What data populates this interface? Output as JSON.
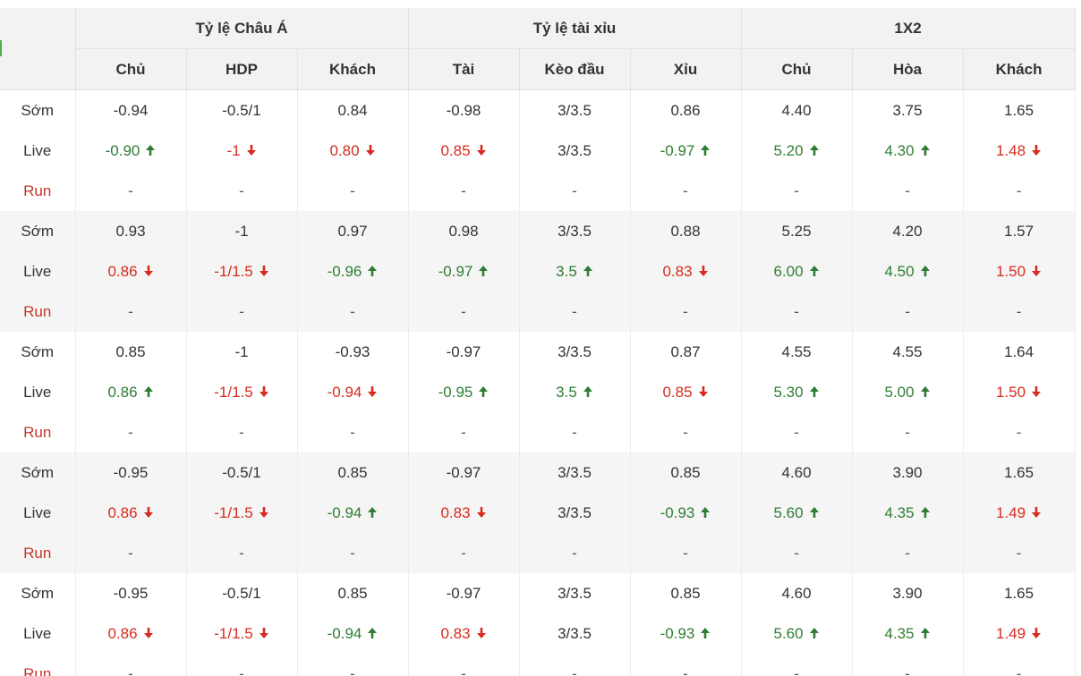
{
  "header": {
    "groups": [
      "Tỷ lệ Châu Á",
      "Tỷ lệ tài xỉu",
      "1X2"
    ],
    "columns": [
      "Chủ",
      "HDP",
      "Khách",
      "Tài",
      "Kèo đầu",
      "Xỉu",
      "Chủ",
      "Hòa",
      "Khách"
    ]
  },
  "labels": {
    "early": "Sớm",
    "live": "Live",
    "run": "Run"
  },
  "colors": {
    "up": "#2e7d32",
    "down": "#d62b1f",
    "run_label": "#c0392b",
    "header_bg": "#f2f2f2",
    "alt_row_bg": "#f5f5f5"
  },
  "icons": {
    "up": "arrow-up-icon",
    "down": "arrow-down-icon"
  },
  "groups": [
    {
      "early": [
        "-0.94",
        "-0.5/1",
        "0.84",
        "-0.98",
        "3/3.5",
        "0.86",
        "4.40",
        "3.75",
        "1.65"
      ],
      "live": [
        {
          "v": "-0.90",
          "d": "up"
        },
        {
          "v": "-1",
          "d": "down"
        },
        {
          "v": "0.80",
          "d": "down"
        },
        {
          "v": "0.85",
          "d": "down"
        },
        {
          "v": "3/3.5",
          "d": ""
        },
        {
          "v": "-0.97",
          "d": "up"
        },
        {
          "v": "5.20",
          "d": "up"
        },
        {
          "v": "4.30",
          "d": "up"
        },
        {
          "v": "1.48",
          "d": "down"
        }
      ],
      "run": [
        "-",
        "-",
        "-",
        "-",
        "-",
        "-",
        "-",
        "-",
        "-"
      ]
    },
    {
      "early": [
        "0.93",
        "-1",
        "0.97",
        "0.98",
        "3/3.5",
        "0.88",
        "5.25",
        "4.20",
        "1.57"
      ],
      "live": [
        {
          "v": "0.86",
          "d": "down"
        },
        {
          "v": "-1/1.5",
          "d": "down"
        },
        {
          "v": "-0.96",
          "d": "up"
        },
        {
          "v": "-0.97",
          "d": "up"
        },
        {
          "v": "3.5",
          "d": "up"
        },
        {
          "v": "0.83",
          "d": "down"
        },
        {
          "v": "6.00",
          "d": "up"
        },
        {
          "v": "4.50",
          "d": "up"
        },
        {
          "v": "1.50",
          "d": "down"
        }
      ],
      "run": [
        "-",
        "-",
        "-",
        "-",
        "-",
        "-",
        "-",
        "-",
        "-"
      ]
    },
    {
      "early": [
        "0.85",
        "-1",
        "-0.93",
        "-0.97",
        "3/3.5",
        "0.87",
        "4.55",
        "4.55",
        "1.64"
      ],
      "live": [
        {
          "v": "0.86",
          "d": "up"
        },
        {
          "v": "-1/1.5",
          "d": "down"
        },
        {
          "v": "-0.94",
          "d": "down"
        },
        {
          "v": "-0.95",
          "d": "up"
        },
        {
          "v": "3.5",
          "d": "up"
        },
        {
          "v": "0.85",
          "d": "down"
        },
        {
          "v": "5.30",
          "d": "up"
        },
        {
          "v": "5.00",
          "d": "up"
        },
        {
          "v": "1.50",
          "d": "down"
        }
      ],
      "run": [
        "-",
        "-",
        "-",
        "-",
        "-",
        "-",
        "-",
        "-",
        "-"
      ]
    },
    {
      "early": [
        "-0.95",
        "-0.5/1",
        "0.85",
        "-0.97",
        "3/3.5",
        "0.85",
        "4.60",
        "3.90",
        "1.65"
      ],
      "live": [
        {
          "v": "0.86",
          "d": "down"
        },
        {
          "v": "-1/1.5",
          "d": "down"
        },
        {
          "v": "-0.94",
          "d": "up"
        },
        {
          "v": "0.83",
          "d": "down"
        },
        {
          "v": "3/3.5",
          "d": ""
        },
        {
          "v": "-0.93",
          "d": "up"
        },
        {
          "v": "5.60",
          "d": "up"
        },
        {
          "v": "4.35",
          "d": "up"
        },
        {
          "v": "1.49",
          "d": "down"
        }
      ],
      "run": [
        "-",
        "-",
        "-",
        "-",
        "-",
        "-",
        "-",
        "-",
        "-"
      ]
    },
    {
      "early": [
        "-0.95",
        "-0.5/1",
        "0.85",
        "-0.97",
        "3/3.5",
        "0.85",
        "4.60",
        "3.90",
        "1.65"
      ],
      "live": [
        {
          "v": "0.86",
          "d": "down"
        },
        {
          "v": "-1/1.5",
          "d": "down"
        },
        {
          "v": "-0.94",
          "d": "up"
        },
        {
          "v": "0.83",
          "d": "down"
        },
        {
          "v": "3/3.5",
          "d": ""
        },
        {
          "v": "-0.93",
          "d": "up"
        },
        {
          "v": "5.60",
          "d": "up"
        },
        {
          "v": "4.35",
          "d": "up"
        },
        {
          "v": "1.49",
          "d": "down"
        }
      ],
      "run": [
        "-",
        "-",
        "-",
        "-",
        "-",
        "-",
        "-",
        "-",
        "-"
      ]
    }
  ]
}
